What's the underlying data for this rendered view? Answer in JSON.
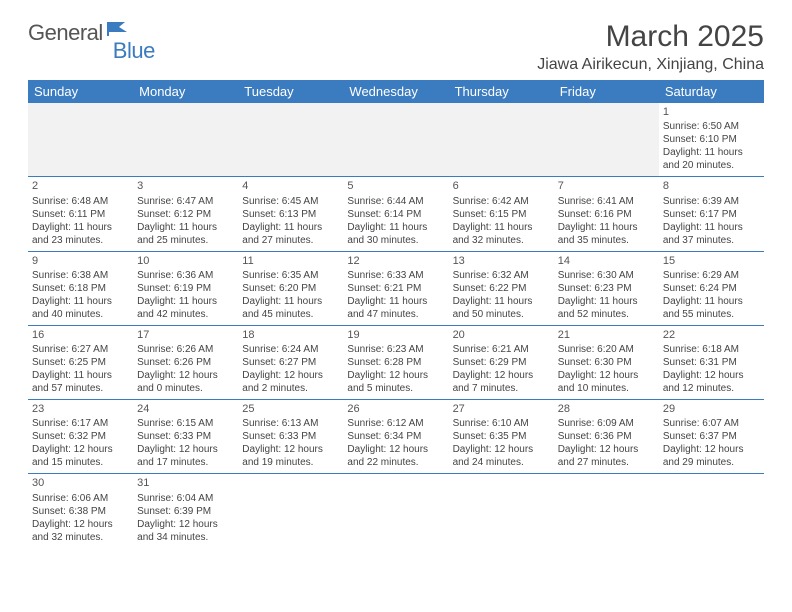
{
  "logo": {
    "general": "General",
    "blue": "Blue"
  },
  "title": "March 2025",
  "location": "Jiawa Airikecun, Xinjiang, China",
  "colors": {
    "header_bg": "#3b7bbf",
    "header_fg": "#ffffff",
    "border": "#3b7bbf",
    "text": "#444444"
  },
  "weekdays": [
    "Sunday",
    "Monday",
    "Tuesday",
    "Wednesday",
    "Thursday",
    "Friday",
    "Saturday"
  ],
  "weeks": [
    [
      null,
      null,
      null,
      null,
      null,
      null,
      {
        "n": "1",
        "sr": "Sunrise: 6:50 AM",
        "ss": "Sunset: 6:10 PM",
        "dl": "Daylight: 11 hours and 20 minutes."
      }
    ],
    [
      {
        "n": "2",
        "sr": "Sunrise: 6:48 AM",
        "ss": "Sunset: 6:11 PM",
        "dl": "Daylight: 11 hours and 23 minutes."
      },
      {
        "n": "3",
        "sr": "Sunrise: 6:47 AM",
        "ss": "Sunset: 6:12 PM",
        "dl": "Daylight: 11 hours and 25 minutes."
      },
      {
        "n": "4",
        "sr": "Sunrise: 6:45 AM",
        "ss": "Sunset: 6:13 PM",
        "dl": "Daylight: 11 hours and 27 minutes."
      },
      {
        "n": "5",
        "sr": "Sunrise: 6:44 AM",
        "ss": "Sunset: 6:14 PM",
        "dl": "Daylight: 11 hours and 30 minutes."
      },
      {
        "n": "6",
        "sr": "Sunrise: 6:42 AM",
        "ss": "Sunset: 6:15 PM",
        "dl": "Daylight: 11 hours and 32 minutes."
      },
      {
        "n": "7",
        "sr": "Sunrise: 6:41 AM",
        "ss": "Sunset: 6:16 PM",
        "dl": "Daylight: 11 hours and 35 minutes."
      },
      {
        "n": "8",
        "sr": "Sunrise: 6:39 AM",
        "ss": "Sunset: 6:17 PM",
        "dl": "Daylight: 11 hours and 37 minutes."
      }
    ],
    [
      {
        "n": "9",
        "sr": "Sunrise: 6:38 AM",
        "ss": "Sunset: 6:18 PM",
        "dl": "Daylight: 11 hours and 40 minutes."
      },
      {
        "n": "10",
        "sr": "Sunrise: 6:36 AM",
        "ss": "Sunset: 6:19 PM",
        "dl": "Daylight: 11 hours and 42 minutes."
      },
      {
        "n": "11",
        "sr": "Sunrise: 6:35 AM",
        "ss": "Sunset: 6:20 PM",
        "dl": "Daylight: 11 hours and 45 minutes."
      },
      {
        "n": "12",
        "sr": "Sunrise: 6:33 AM",
        "ss": "Sunset: 6:21 PM",
        "dl": "Daylight: 11 hours and 47 minutes."
      },
      {
        "n": "13",
        "sr": "Sunrise: 6:32 AM",
        "ss": "Sunset: 6:22 PM",
        "dl": "Daylight: 11 hours and 50 minutes."
      },
      {
        "n": "14",
        "sr": "Sunrise: 6:30 AM",
        "ss": "Sunset: 6:23 PM",
        "dl": "Daylight: 11 hours and 52 minutes."
      },
      {
        "n": "15",
        "sr": "Sunrise: 6:29 AM",
        "ss": "Sunset: 6:24 PM",
        "dl": "Daylight: 11 hours and 55 minutes."
      }
    ],
    [
      {
        "n": "16",
        "sr": "Sunrise: 6:27 AM",
        "ss": "Sunset: 6:25 PM",
        "dl": "Daylight: 11 hours and 57 minutes."
      },
      {
        "n": "17",
        "sr": "Sunrise: 6:26 AM",
        "ss": "Sunset: 6:26 PM",
        "dl": "Daylight: 12 hours and 0 minutes."
      },
      {
        "n": "18",
        "sr": "Sunrise: 6:24 AM",
        "ss": "Sunset: 6:27 PM",
        "dl": "Daylight: 12 hours and 2 minutes."
      },
      {
        "n": "19",
        "sr": "Sunrise: 6:23 AM",
        "ss": "Sunset: 6:28 PM",
        "dl": "Daylight: 12 hours and 5 minutes."
      },
      {
        "n": "20",
        "sr": "Sunrise: 6:21 AM",
        "ss": "Sunset: 6:29 PM",
        "dl": "Daylight: 12 hours and 7 minutes."
      },
      {
        "n": "21",
        "sr": "Sunrise: 6:20 AM",
        "ss": "Sunset: 6:30 PM",
        "dl": "Daylight: 12 hours and 10 minutes."
      },
      {
        "n": "22",
        "sr": "Sunrise: 6:18 AM",
        "ss": "Sunset: 6:31 PM",
        "dl": "Daylight: 12 hours and 12 minutes."
      }
    ],
    [
      {
        "n": "23",
        "sr": "Sunrise: 6:17 AM",
        "ss": "Sunset: 6:32 PM",
        "dl": "Daylight: 12 hours and 15 minutes."
      },
      {
        "n": "24",
        "sr": "Sunrise: 6:15 AM",
        "ss": "Sunset: 6:33 PM",
        "dl": "Daylight: 12 hours and 17 minutes."
      },
      {
        "n": "25",
        "sr": "Sunrise: 6:13 AM",
        "ss": "Sunset: 6:33 PM",
        "dl": "Daylight: 12 hours and 19 minutes."
      },
      {
        "n": "26",
        "sr": "Sunrise: 6:12 AM",
        "ss": "Sunset: 6:34 PM",
        "dl": "Daylight: 12 hours and 22 minutes."
      },
      {
        "n": "27",
        "sr": "Sunrise: 6:10 AM",
        "ss": "Sunset: 6:35 PM",
        "dl": "Daylight: 12 hours and 24 minutes."
      },
      {
        "n": "28",
        "sr": "Sunrise: 6:09 AM",
        "ss": "Sunset: 6:36 PM",
        "dl": "Daylight: 12 hours and 27 minutes."
      },
      {
        "n": "29",
        "sr": "Sunrise: 6:07 AM",
        "ss": "Sunset: 6:37 PM",
        "dl": "Daylight: 12 hours and 29 minutes."
      }
    ],
    [
      {
        "n": "30",
        "sr": "Sunrise: 6:06 AM",
        "ss": "Sunset: 6:38 PM",
        "dl": "Daylight: 12 hours and 32 minutes."
      },
      {
        "n": "31",
        "sr": "Sunrise: 6:04 AM",
        "ss": "Sunset: 6:39 PM",
        "dl": "Daylight: 12 hours and 34 minutes."
      },
      null,
      null,
      null,
      null,
      null
    ]
  ]
}
